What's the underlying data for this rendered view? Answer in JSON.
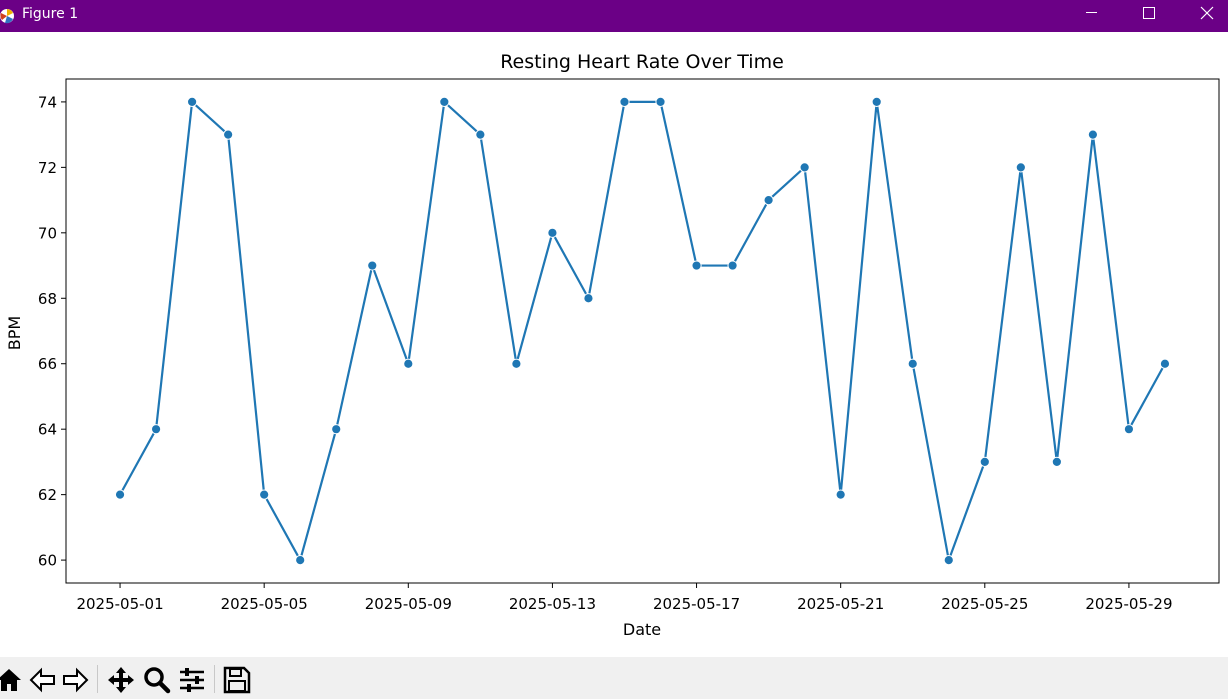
{
  "window": {
    "title": "Figure 1",
    "controls": [
      "minimize",
      "maximize",
      "close"
    ]
  },
  "toolbar": {
    "tools": [
      "home-icon",
      "back-icon",
      "forward-icon",
      "pan-icon",
      "zoom-icon",
      "configure-subplots-icon",
      "save-icon"
    ]
  },
  "chart_data": {
    "type": "line",
    "title": "Resting Heart Rate Over Time",
    "xlabel": "Date",
    "ylabel": "BPM",
    "x": [
      "2025-05-01",
      "2025-05-02",
      "2025-05-03",
      "2025-05-04",
      "2025-05-05",
      "2025-05-06",
      "2025-05-07",
      "2025-05-08",
      "2025-05-09",
      "2025-05-10",
      "2025-05-11",
      "2025-05-12",
      "2025-05-13",
      "2025-05-14",
      "2025-05-15",
      "2025-05-16",
      "2025-05-17",
      "2025-05-18",
      "2025-05-19",
      "2025-05-20",
      "2025-05-21",
      "2025-05-22",
      "2025-05-23",
      "2025-05-24",
      "2025-05-25",
      "2025-05-26",
      "2025-05-27",
      "2025-05-28",
      "2025-05-29",
      "2025-05-30"
    ],
    "series": [
      {
        "values": [
          62,
          64,
          74,
          73,
          62,
          60,
          64,
          69,
          66,
          74,
          73,
          66,
          70,
          68,
          74,
          74,
          69,
          69,
          71,
          72,
          62,
          74,
          66,
          60,
          63,
          72,
          63,
          73,
          64,
          66
        ],
        "color": "#1f77b4",
        "marker": "circle"
      }
    ],
    "x_ticks": [
      "2025-05-01",
      "2025-05-05",
      "2025-05-09",
      "2025-05-13",
      "2025-05-17",
      "2025-05-21",
      "2025-05-25",
      "2025-05-29"
    ],
    "y_ticks": [
      60,
      62,
      64,
      66,
      68,
      70,
      72,
      74
    ],
    "ylim": [
      59.3,
      74.7
    ],
    "xlim": [
      "2025-04-29 12:00",
      "2025-05-31 12:00"
    ],
    "grid": false,
    "legend": "none"
  }
}
